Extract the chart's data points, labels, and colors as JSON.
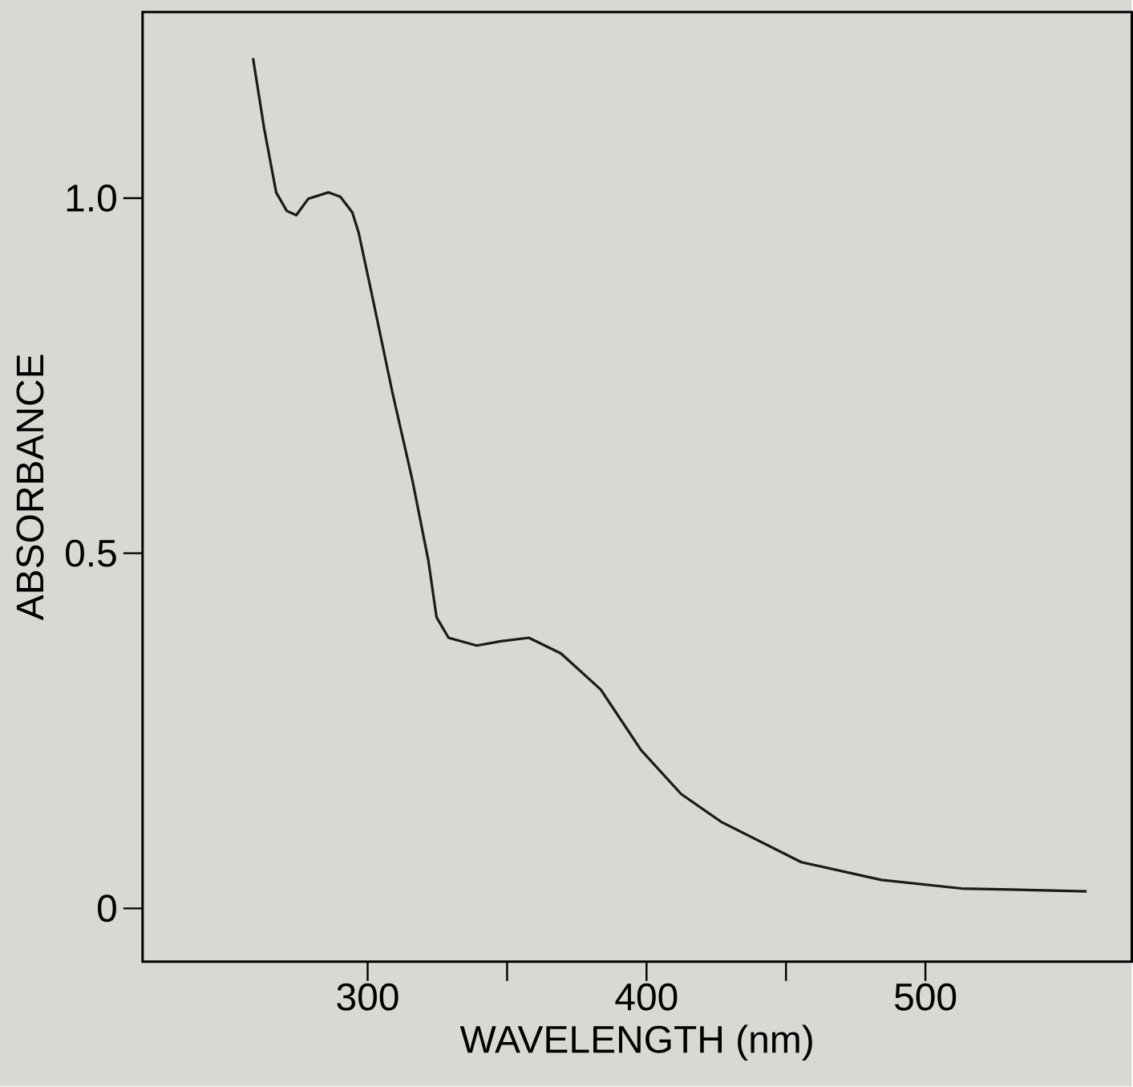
{
  "chart_data": {
    "type": "line",
    "xlabel": "WAVELENGTH   (nm)",
    "ylabel": "ABSORBANCE",
    "xlim": [
      219.3,
      574
    ],
    "ylim": [
      -0.075,
      1.262
    ],
    "xticks": [
      300,
      400,
      500
    ],
    "yticks": [
      0,
      0.5,
      {
        "value": 1.0,
        "label": "1.0"
      }
    ],
    "grid": false,
    "marker": "none",
    "line_style": "solid",
    "series": [
      {
        "color": "#1a1a1a",
        "x": [
          258.9,
          262.9,
          267.2,
          271.0,
          274.4,
          278.7,
          285.9,
          290.2,
          294.5,
          296.8,
          301.7,
          308.9,
          316.1,
          321.8,
          324.7,
          329.0,
          339.1,
          347.7,
          357.8,
          369.3,
          383.6,
          398.0,
          412.4,
          426.7,
          455.5,
          484.2,
          512.9,
          557.8
        ],
        "values": [
          1.197,
          1.098,
          1.008,
          0.982,
          0.976,
          0.999,
          1.008,
          1.002,
          0.98,
          0.951,
          0.861,
          0.726,
          0.602,
          0.489,
          0.41,
          0.381,
          0.37,
          0.376,
          0.381,
          0.359,
          0.308,
          0.223,
          0.161,
          0.122,
          0.065,
          0.04,
          0.028,
          0.024
        ]
      }
    ]
  }
}
